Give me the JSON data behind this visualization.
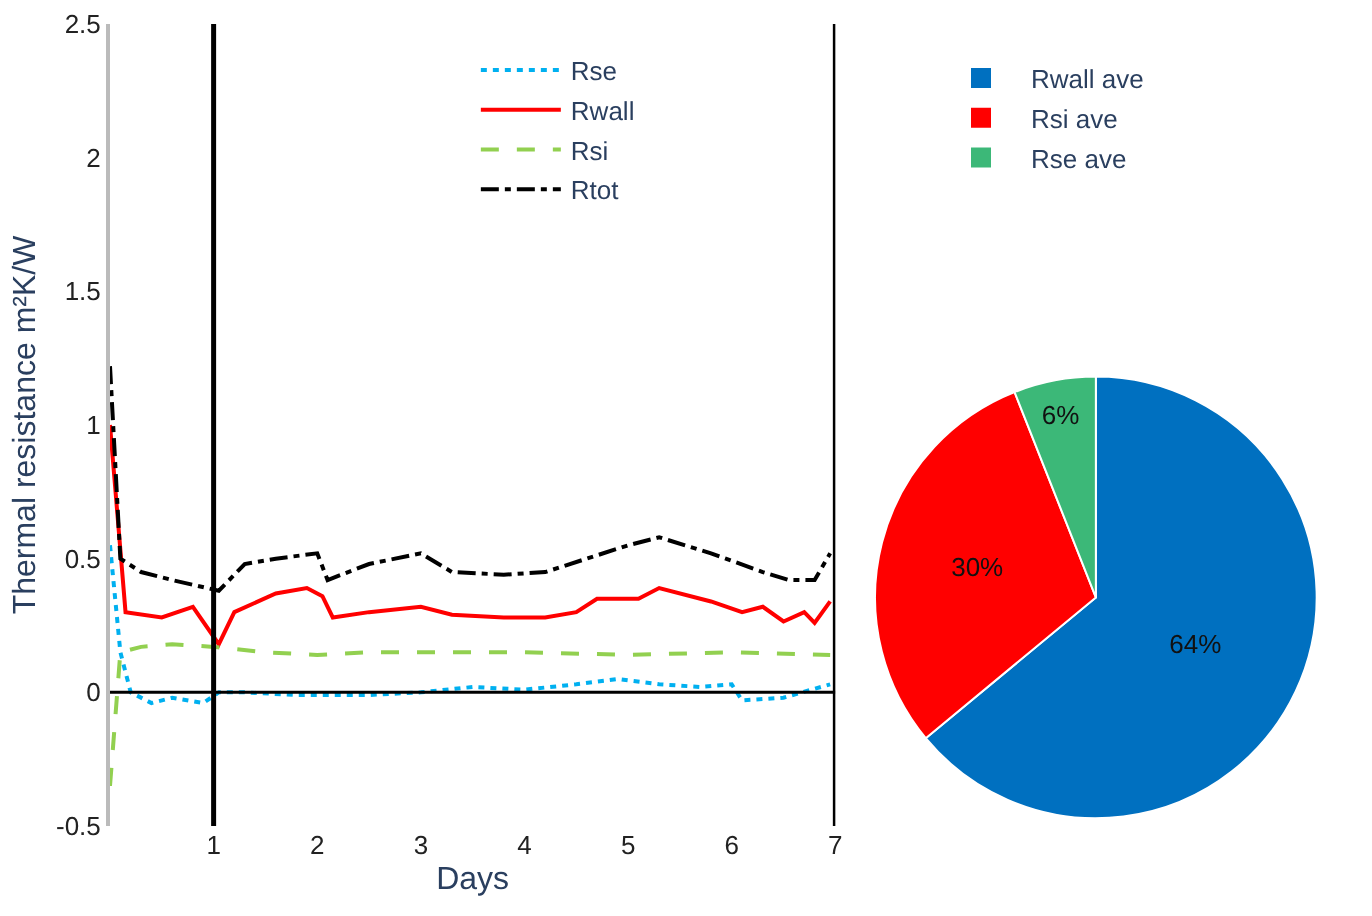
{
  "chart_data": [
    {
      "type": "line",
      "xlabel": "Days",
      "ylabel": "Thermal resistance m²K/W",
      "xlim": [
        0,
        7
      ],
      "xticks": [
        1,
        2,
        3,
        4,
        5,
        6,
        7
      ],
      "ylim": [
        -0.5,
        2.5
      ],
      "yticks": [
        -0.5,
        0,
        0.5,
        1,
        1.5,
        2,
        2.5
      ],
      "legend": "top",
      "marker": "none",
      "ref_lines": [
        {
          "axis": "x",
          "value": 1,
          "color": "#000000",
          "line_style": "solid"
        },
        {
          "axis": "x",
          "value": 7,
          "color": "#000000",
          "line_style": "solid"
        },
        {
          "axis": "y",
          "value": 0,
          "color": "#000000",
          "line_style": "solid"
        }
      ],
      "series": [
        {
          "name": "Rse",
          "color": "#00b0f0",
          "line_style": "dotted",
          "x": [
            0,
            0.1,
            0.2,
            0.4,
            0.6,
            0.9,
            1.05,
            1.3,
            1.8,
            2.5,
            3,
            3.5,
            4,
            4.5,
            4.9,
            5.3,
            5.7,
            6,
            6.1,
            6.5,
            6.95
          ],
          "values": [
            0.55,
            0.15,
            0.0,
            -0.04,
            -0.02,
            -0.04,
            0.0,
            0.0,
            -0.01,
            -0.01,
            0.0,
            0.02,
            0.01,
            0.03,
            0.05,
            0.03,
            0.02,
            0.03,
            -0.03,
            -0.02,
            0.03
          ]
        },
        {
          "name": "Rwall",
          "color": "#ff0000",
          "line_style": "solid",
          "x": [
            0,
            0.15,
            0.5,
            0.8,
            1.05,
            1.2,
            1.6,
            1.9,
            2.05,
            2.15,
            2.5,
            3,
            3.3,
            3.8,
            4.2,
            4.5,
            4.7,
            5.1,
            5.3,
            5.8,
            6.1,
            6.3,
            6.5,
            6.7,
            6.8,
            6.95
          ],
          "values": [
            1.0,
            0.3,
            0.28,
            0.32,
            0.18,
            0.3,
            0.37,
            0.39,
            0.36,
            0.28,
            0.3,
            0.32,
            0.29,
            0.28,
            0.28,
            0.3,
            0.35,
            0.35,
            0.39,
            0.34,
            0.3,
            0.32,
            0.265,
            0.3,
            0.26,
            0.34
          ]
        },
        {
          "name": "Rsi",
          "color": "#92d050",
          "line_style": "dashed",
          "x": [
            0,
            0.1,
            0.3,
            0.6,
            1,
            1.5,
            2,
            2.5,
            3,
            4,
            5,
            6,
            6.95
          ],
          "values": [
            -0.35,
            0.15,
            0.17,
            0.18,
            0.17,
            0.15,
            0.14,
            0.15,
            0.15,
            0.15,
            0.14,
            0.15,
            0.14
          ]
        },
        {
          "name": "Rtot",
          "color": "#000000",
          "line_style": "dashdot",
          "x": [
            0,
            0.1,
            0.3,
            0.6,
            1.05,
            1.3,
            1.6,
            2,
            2.1,
            2.5,
            3,
            3.3,
            3.8,
            4.2,
            4.6,
            5,
            5.3,
            5.8,
            6.3,
            6.55,
            6.8,
            6.95
          ],
          "values": [
            1.22,
            0.5,
            0.45,
            0.42,
            0.38,
            0.48,
            0.5,
            0.52,
            0.42,
            0.48,
            0.52,
            0.45,
            0.44,
            0.45,
            0.5,
            0.55,
            0.58,
            0.52,
            0.45,
            0.42,
            0.42,
            0.52
          ]
        }
      ]
    },
    {
      "type": "pie",
      "legend": "top",
      "categories": [
        "Rwall ave",
        "Rsi ave",
        "Rse ave"
      ],
      "values": [
        64,
        30,
        6
      ],
      "colors": [
        "#0070c0",
        "#ff0000",
        "#3cb878"
      ],
      "value_labels": [
        "64%",
        "30%",
        "6%"
      ]
    }
  ]
}
